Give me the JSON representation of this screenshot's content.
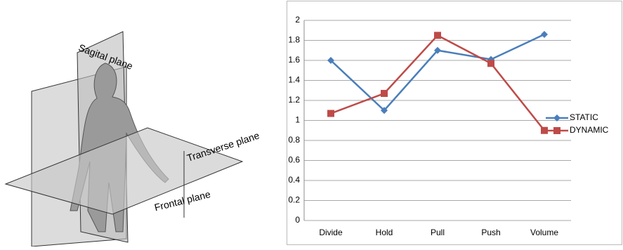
{
  "diagram": {
    "labels": [
      "Sagital plane",
      "Transverse plane",
      "Frontal plane"
    ]
  },
  "chart_data": {
    "type": "line",
    "categories": [
      "Divide",
      "Hold",
      "Pull",
      "Push",
      "Volume"
    ],
    "series": [
      {
        "name": "STATIC",
        "color": "#4a7ebb",
        "marker": "diamond",
        "values": [
          1.6,
          1.1,
          1.7,
          1.61,
          1.86
        ]
      },
      {
        "name": "DYNAMIC",
        "color": "#be4b48",
        "marker": "square",
        "values": [
          1.07,
          1.27,
          1.85,
          1.57,
          0.9
        ]
      }
    ],
    "ylim": [
      0,
      2
    ],
    "yticks": [
      0,
      0.2,
      0.4,
      0.6,
      0.8,
      1,
      1.2,
      1.4,
      1.6,
      1.8,
      2
    ],
    "grid": true,
    "legend": "right"
  }
}
